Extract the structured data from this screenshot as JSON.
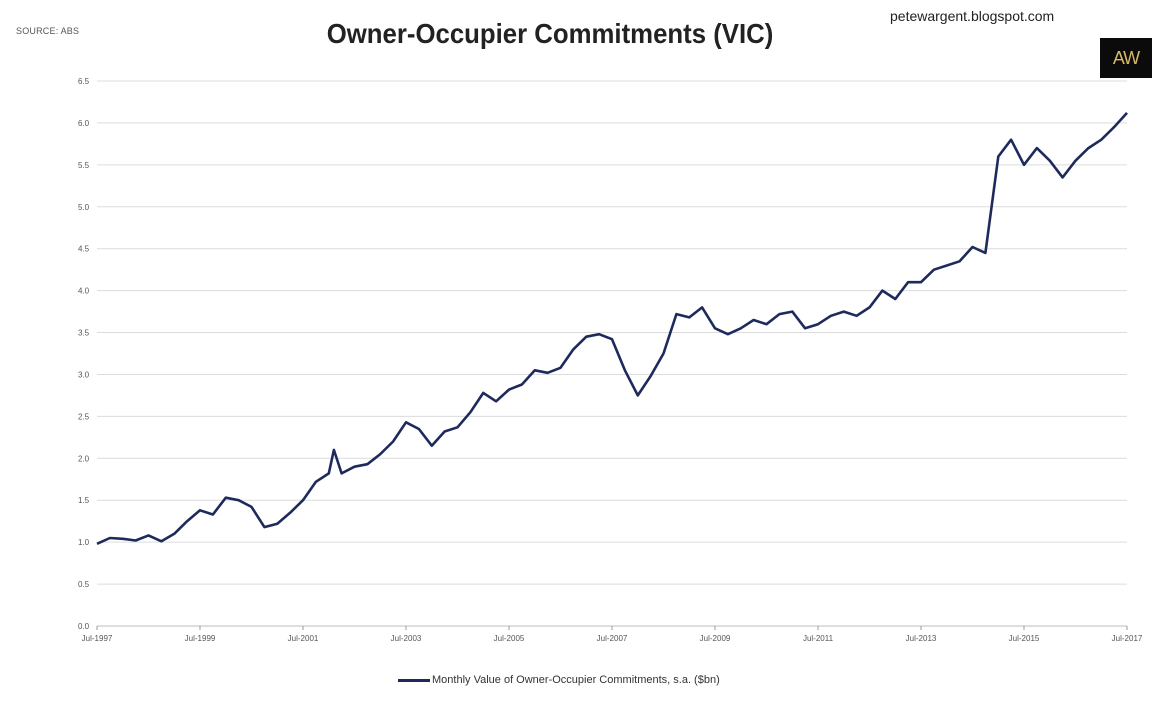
{
  "header": {
    "source": "SOURCE: ABS",
    "title": "Owner-Occupier Commitments (VIC)",
    "blog": "petewargent.blogspot.com",
    "logo_text": "AW"
  },
  "colors": {
    "line": "#1f2a5c",
    "grid": "#dcdcdc",
    "logo_bg": "#0b0b0b",
    "logo_text": "#d7b86a"
  },
  "legend": {
    "label": "Monthly Value of Owner-Occupier Commitments, s.a. ($bn)"
  },
  "chart_data": {
    "type": "line",
    "title": "Owner-Occupier Commitments (VIC)",
    "xlabel": "",
    "ylabel": "",
    "ylim": [
      0,
      6.5
    ],
    "yticks": [
      "0.0",
      "0.5",
      "1.0",
      "1.5",
      "2.0",
      "2.5",
      "3.0",
      "3.5",
      "4.0",
      "4.5",
      "5.0",
      "5.5",
      "6.0",
      "6.5"
    ],
    "xticks": [
      "Jul-1997",
      "Jul-1999",
      "Jul-2001",
      "Jul-2003",
      "Jul-2005",
      "Jul-2007",
      "Jul-2009",
      "Jul-2011",
      "Jul-2013",
      "Jul-2015",
      "Jul-2017"
    ],
    "grid": true,
    "legend_position": "bottom",
    "series": [
      {
        "name": "Monthly Value of Owner-Occupier Commitments, s.a. ($bn)",
        "x": [
          1997.5,
          1997.75,
          1998.0,
          1998.25,
          1998.5,
          1998.75,
          1999.0,
          1999.25,
          1999.5,
          1999.75,
          2000.0,
          2000.25,
          2000.5,
          2000.75,
          2001.0,
          2001.25,
          2001.5,
          2001.75,
          2002.0,
          2002.1,
          2002.25,
          2002.5,
          2002.75,
          2003.0,
          2003.25,
          2003.5,
          2003.75,
          2004.0,
          2004.25,
          2004.5,
          2004.75,
          2005.0,
          2005.25,
          2005.5,
          2005.75,
          2006.0,
          2006.25,
          2006.5,
          2006.75,
          2007.0,
          2007.25,
          2007.5,
          2007.75,
          2008.0,
          2008.25,
          2008.5,
          2008.75,
          2009.0,
          2009.25,
          2009.5,
          2009.75,
          2010.0,
          2010.25,
          2010.5,
          2010.75,
          2011.0,
          2011.25,
          2011.5,
          2011.75,
          2012.0,
          2012.25,
          2012.5,
          2012.75,
          2013.0,
          2013.25,
          2013.5,
          2013.75,
          2014.0,
          2014.25,
          2014.5,
          2014.75,
          2015.0,
          2015.25,
          2015.5,
          2015.75,
          2016.0,
          2016.25,
          2016.5,
          2016.75,
          2017.0,
          2017.25,
          2017.5
        ],
        "values": [
          0.98,
          1.05,
          1.04,
          1.02,
          1.08,
          1.01,
          1.1,
          1.25,
          1.38,
          1.33,
          1.53,
          1.5,
          1.42,
          1.18,
          1.22,
          1.35,
          1.5,
          1.72,
          1.82,
          2.1,
          1.82,
          1.9,
          1.93,
          2.05,
          2.2,
          2.43,
          2.35,
          2.15,
          2.32,
          2.37,
          2.55,
          2.78,
          2.68,
          2.82,
          2.88,
          3.05,
          3.02,
          3.08,
          3.3,
          3.45,
          3.48,
          3.42,
          3.05,
          2.75,
          2.98,
          3.25,
          3.72,
          3.68,
          3.8,
          3.55,
          3.48,
          3.55,
          3.65,
          3.6,
          3.72,
          3.75,
          3.55,
          3.6,
          3.7,
          3.75,
          3.7,
          3.8,
          4.0,
          3.9,
          4.1,
          4.1,
          4.25,
          4.3,
          4.35,
          4.52,
          4.45,
          5.6,
          5.8,
          5.5,
          5.7,
          5.55,
          5.35,
          5.55,
          5.7,
          5.8,
          5.95,
          6.12
        ]
      }
    ]
  }
}
